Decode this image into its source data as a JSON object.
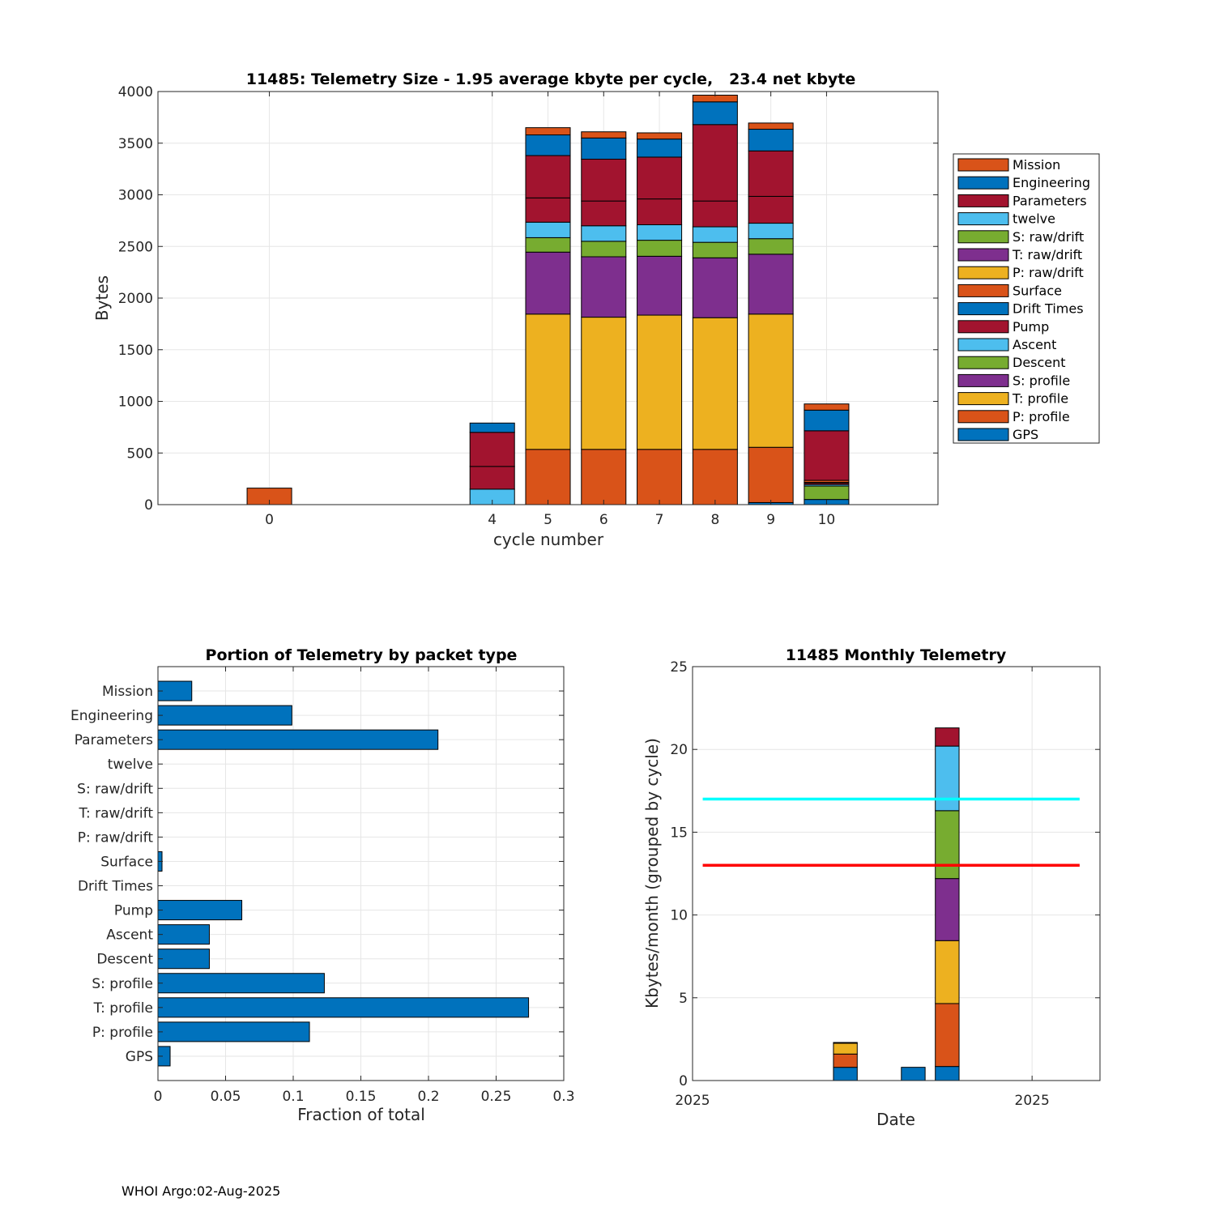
{
  "colors": {
    "Mission": "#D95319",
    "Engineering": "#0072BD",
    "Parameters": "#A2142F",
    "twelve": "#4DBEEE",
    "S: raw/drift": "#77AC30",
    "T: raw/drift": "#7E2F8E",
    "P: raw/drift": "#EDB120",
    "Surface": "#D95319",
    "Drift Times": "#0072BD",
    "Pump": "#A2142F",
    "Ascent": "#4DBEEE",
    "Descent": "#77AC30",
    "S: profile": "#7E2F8E",
    "T: profile": "#EDB120",
    "P: profile": "#D95319",
    "GPS": "#0072BD",
    "bar": "#0072BD",
    "cyan_line": "#00FFFF",
    "red_line": "#FF0000"
  },
  "chart_data": [
    {
      "type": "bar",
      "stacked": true,
      "title": "11485: Telemetry Size - 1.95 average kbyte per cycle,   23.4 net kbyte",
      "xlabel": "cycle number",
      "ylabel": "Bytes",
      "xlim": [
        -2,
        12
      ],
      "ylim": [
        0,
        4000
      ],
      "yticks": [
        0,
        500,
        1000,
        1500,
        2000,
        2500,
        3000,
        3500,
        4000
      ],
      "categories": [
        "0",
        "4",
        "5",
        "6",
        "7",
        "8",
        "9",
        "10"
      ],
      "x": [
        0,
        4,
        5,
        6,
        7,
        8,
        9,
        10
      ],
      "grid": true,
      "legend_position": "right",
      "series": [
        {
          "name": "GPS",
          "values": [
            0,
            0,
            0,
            0,
            0,
            0,
            20,
            50
          ]
        },
        {
          "name": "P: profile",
          "values": [
            0,
            0,
            535,
            535,
            535,
            535,
            535,
            0
          ]
        },
        {
          "name": "T: profile",
          "values": [
            0,
            0,
            1310,
            1280,
            1300,
            1275,
            1290,
            0
          ]
        },
        {
          "name": "S: profile",
          "values": [
            0,
            0,
            600,
            585,
            570,
            580,
            580,
            0
          ]
        },
        {
          "name": "Descent",
          "values": [
            0,
            0,
            140,
            150,
            155,
            150,
            150,
            130
          ]
        },
        {
          "name": "Ascent",
          "values": [
            0,
            150,
            150,
            150,
            150,
            150,
            150,
            15
          ]
        },
        {
          "name": "Pump",
          "values": [
            0,
            220,
            235,
            240,
            250,
            250,
            260,
            15
          ]
        },
        {
          "name": "Drift Times",
          "values": [
            0,
            0,
            0,
            0,
            0,
            0,
            0,
            5
          ]
        },
        {
          "name": "Surface",
          "values": [
            0,
            0,
            0,
            0,
            0,
            0,
            0,
            20
          ]
        },
        {
          "name": "P: raw/drift",
          "values": [
            0,
            0,
            0,
            0,
            0,
            0,
            0,
            0
          ]
        },
        {
          "name": "T: raw/drift",
          "values": [
            0,
            0,
            0,
            0,
            0,
            0,
            0,
            0
          ]
        },
        {
          "name": "S: raw/drift",
          "values": [
            0,
            0,
            0,
            0,
            0,
            0,
            0,
            0
          ]
        },
        {
          "name": "twelve",
          "values": [
            0,
            0,
            0,
            0,
            0,
            0,
            0,
            0
          ]
        },
        {
          "name": "Parameters",
          "values": [
            0,
            330,
            410,
            405,
            405,
            740,
            440,
            480
          ]
        },
        {
          "name": "Engineering",
          "values": [
            0,
            90,
            200,
            205,
            175,
            220,
            210,
            200
          ]
        },
        {
          "name": "Mission",
          "values": [
            160,
            0,
            70,
            60,
            60,
            65,
            60,
            60
          ]
        }
      ],
      "legend": [
        "Mission",
        "Engineering",
        "Parameters",
        "twelve",
        "S: raw/drift",
        "T: raw/drift",
        "P: raw/drift",
        "Surface",
        "Drift Times",
        "Pump",
        "Ascent",
        "Descent",
        "S: profile",
        "T: profile",
        "P: profile",
        "GPS"
      ]
    },
    {
      "type": "bar",
      "orientation": "horizontal",
      "title": "Portion of Telemetry by packet type",
      "xlabel": "Fraction of total",
      "ylabel": "",
      "xlim": [
        0,
        0.3
      ],
      "xticks": [
        0,
        0.05,
        0.1,
        0.15,
        0.2,
        0.25,
        0.3
      ],
      "xtick_labels": [
        "0",
        "0.05",
        "0.1",
        "0.15",
        "0.2",
        "0.25",
        "0.3"
      ],
      "grid": true,
      "categories": [
        "Mission",
        "Engineering",
        "Parameters",
        "twelve",
        "S: raw/drift",
        "T: raw/drift",
        "P: raw/drift",
        "Surface",
        "Drift Times",
        "Pump",
        "Ascent",
        "Descent",
        "S: profile",
        "T: profile",
        "P: profile",
        "GPS"
      ],
      "values": [
        0.025,
        0.099,
        0.207,
        0,
        0,
        0,
        0,
        0.003,
        0,
        0.062,
        0.038,
        0.038,
        0.123,
        0.274,
        0.112,
        0.009
      ]
    },
    {
      "type": "bar",
      "stacked": true,
      "title": "11485 Monthly Telemetry",
      "xlabel": "Date",
      "ylabel": "Kbytes/month (grouped by cycle)",
      "xlim": [
        0,
        12
      ],
      "ylim": [
        0,
        25
      ],
      "yticks": [
        0,
        5,
        10,
        15,
        20,
        25
      ],
      "xticks": [
        0,
        10
      ],
      "xtick_labels": [
        "2025",
        "2025"
      ],
      "grid": true,
      "x": [
        4.5,
        6.5,
        7.5
      ],
      "bar_width": 0.7,
      "series": [
        {
          "name": "GPS",
          "values": [
            0.8,
            0.8,
            0.85
          ]
        },
        {
          "name": "P: profile",
          "values": [
            0.8,
            0,
            3.8
          ]
        },
        {
          "name": "T: profile",
          "values": [
            0.65,
            0,
            3.8
          ]
        },
        {
          "name": "S: profile",
          "values": [
            0.05,
            0,
            3.75
          ]
        },
        {
          "name": "Descent",
          "values": [
            0,
            0,
            4.1
          ]
        },
        {
          "name": "Ascent",
          "values": [
            0,
            0,
            3.9
          ]
        },
        {
          "name": "Pump",
          "values": [
            0,
            0,
            1.1
          ]
        }
      ],
      "reference_lines": [
        {
          "y": 17,
          "color": "cyan",
          "x_range": [
            0.3,
            11.4
          ]
        },
        {
          "y": 13,
          "color": "red",
          "x_range": [
            0.3,
            11.4
          ]
        }
      ]
    }
  ],
  "footer": {
    "text": "WHOI Argo:02-Aug-2025"
  }
}
